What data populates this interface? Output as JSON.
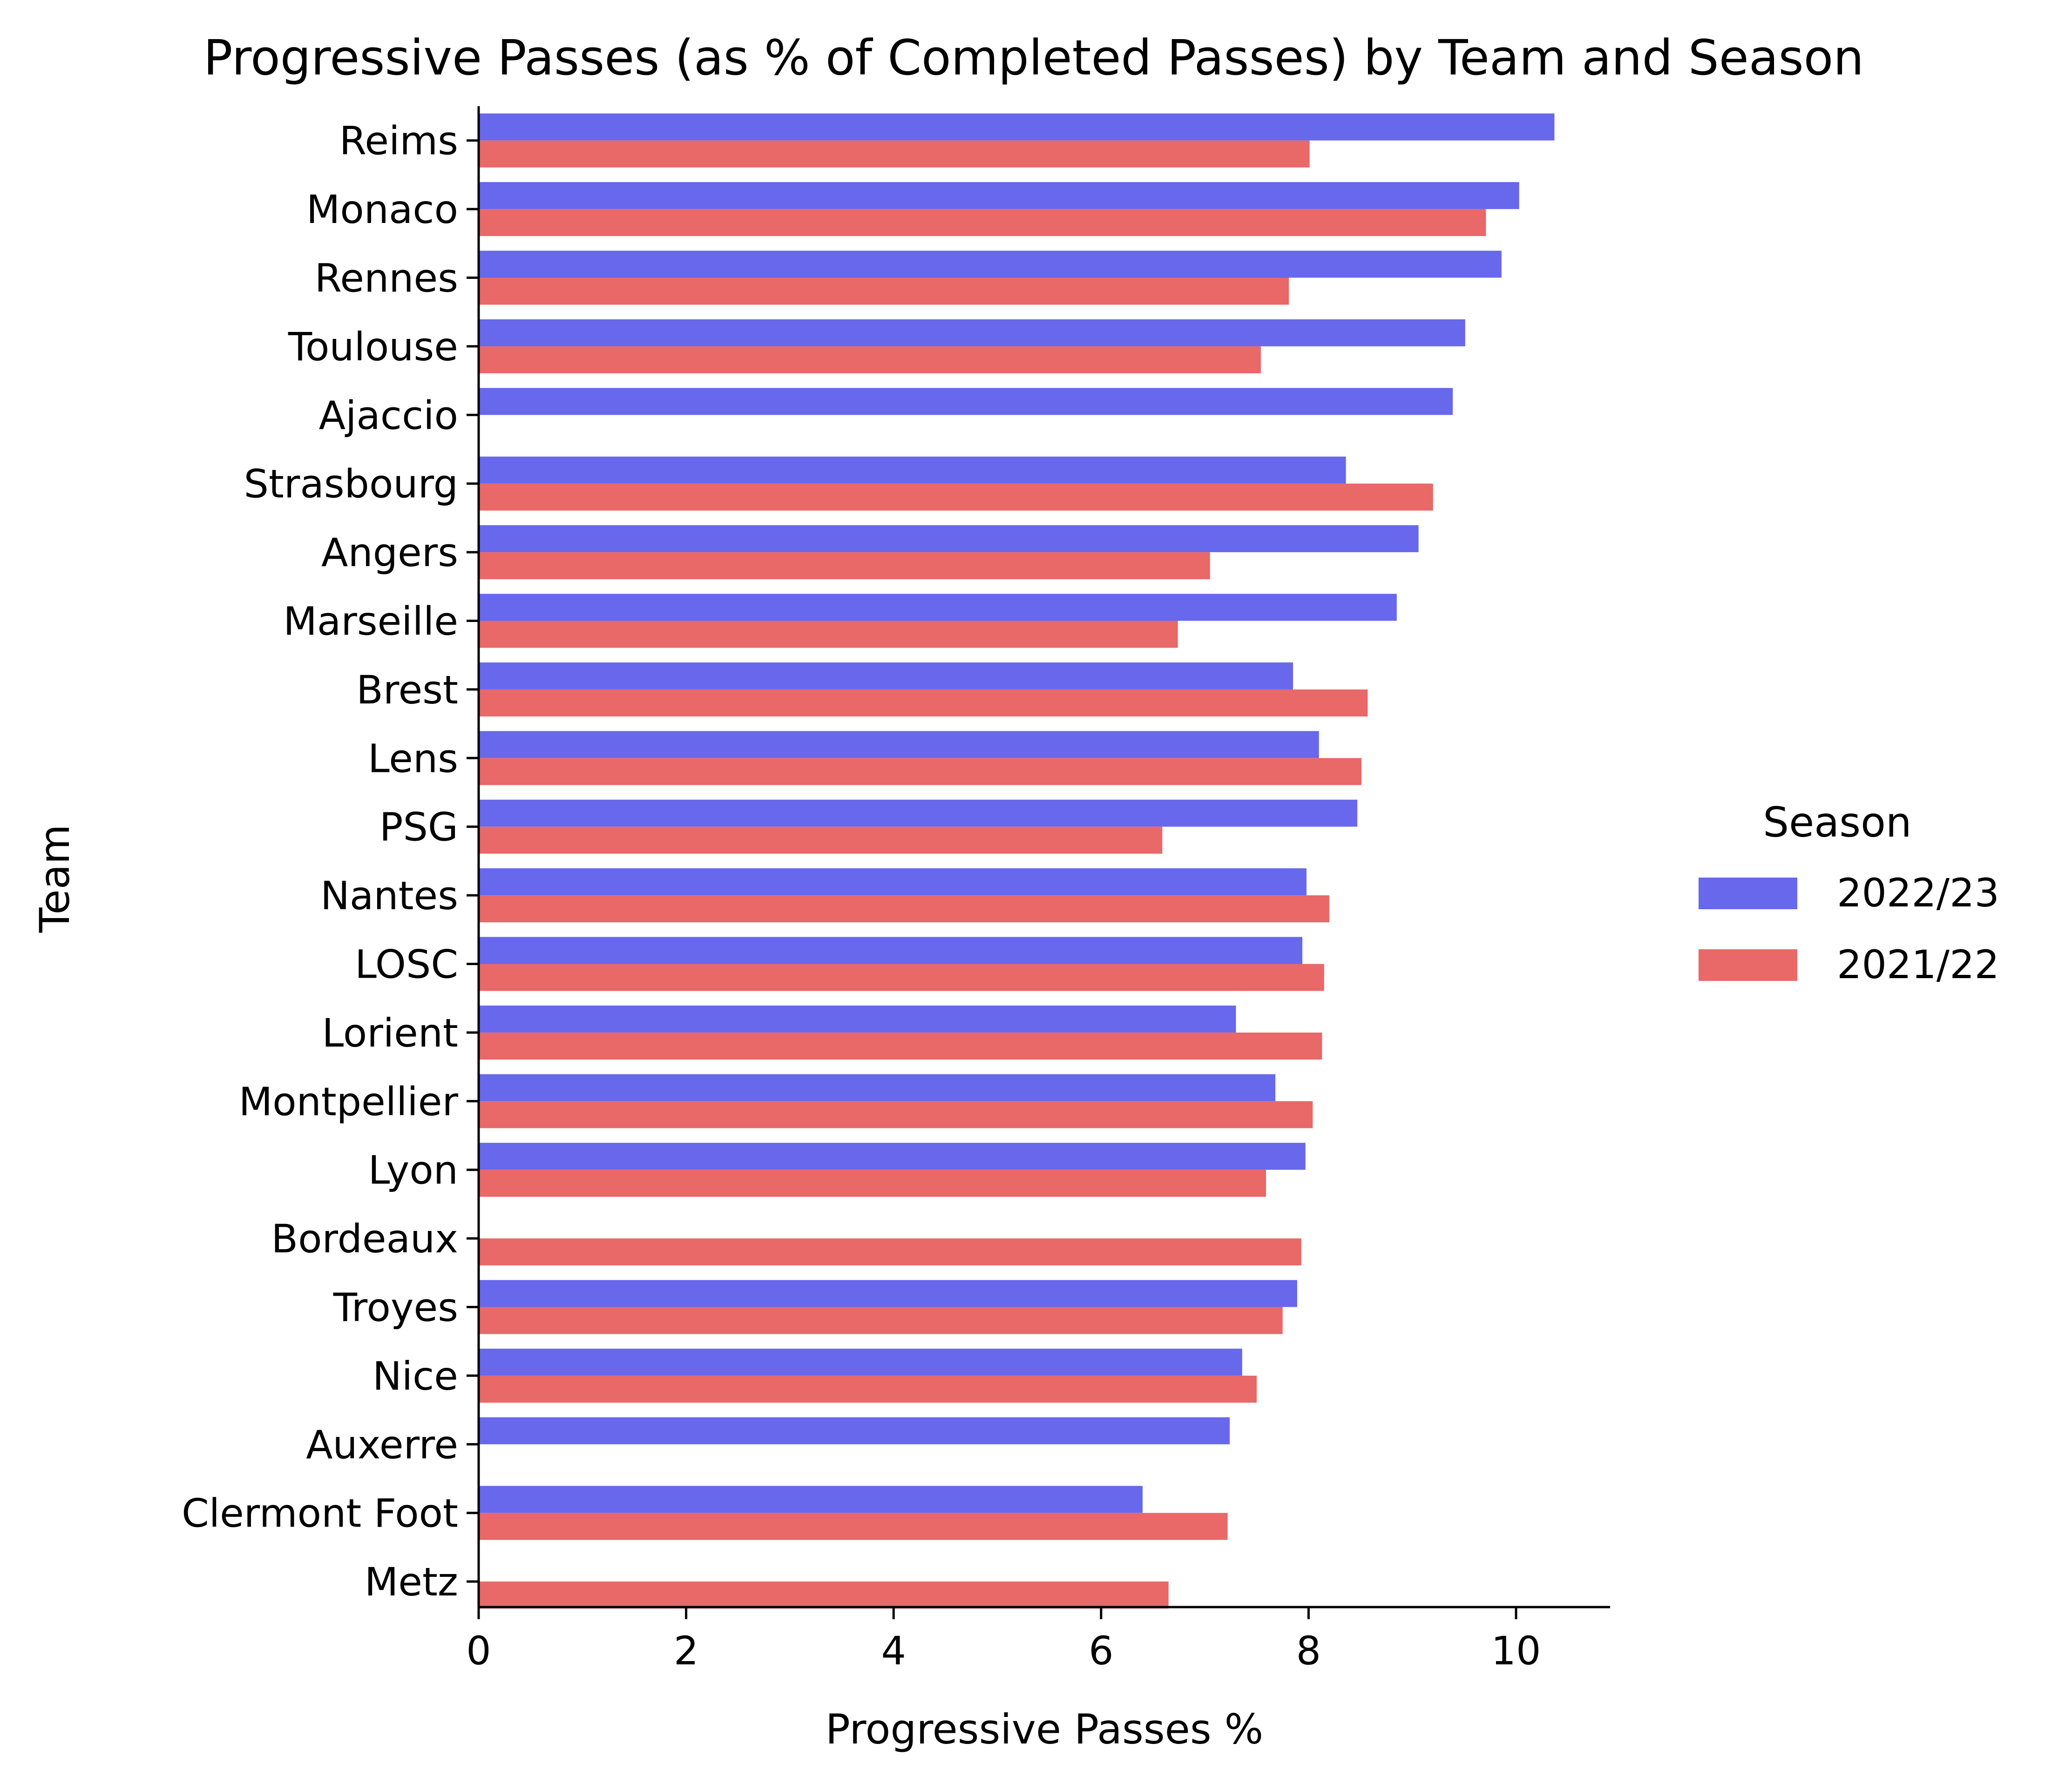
{
  "chart_data": {
    "type": "bar",
    "orientation": "horizontal",
    "title": "Progressive Passes (as % of Completed Passes) by Team and Season",
    "xlabel": "Progressive Passes %",
    "ylabel": "Team",
    "xlim": [
      0,
      10.9
    ],
    "xticks": [
      0,
      2,
      4,
      6,
      8,
      10
    ],
    "grid": false,
    "legend": {
      "title": "Season",
      "placement": "right"
    },
    "categories": [
      "Reims",
      "Monaco",
      "Rennes",
      "Toulouse",
      "Ajaccio",
      "Strasbourg",
      "Angers",
      "Marseille",
      "Brest",
      "Lens",
      "PSG",
      "Nantes",
      "LOSC",
      "Lorient",
      "Montpellier",
      "Lyon",
      "Bordeaux",
      "Troyes",
      "Nice",
      "Auxerre",
      "Clermont Foot",
      "Metz"
    ],
    "series": [
      {
        "name": "2022/23",
        "color": "#6868ec",
        "values": [
          10.37,
          10.03,
          9.86,
          9.51,
          9.39,
          8.36,
          9.06,
          8.85,
          7.85,
          8.1,
          8.47,
          7.98,
          7.94,
          7.3,
          7.68,
          7.97,
          null,
          7.89,
          7.36,
          7.24,
          6.4,
          null
        ]
      },
      {
        "name": "2021/22",
        "color": "#e96868",
        "values": [
          8.01,
          9.71,
          7.81,
          7.54,
          null,
          9.2,
          7.05,
          6.74,
          8.57,
          8.51,
          6.59,
          8.2,
          8.15,
          8.13,
          8.04,
          7.59,
          7.93,
          7.75,
          7.5,
          null,
          7.22,
          6.65
        ]
      }
    ]
  }
}
